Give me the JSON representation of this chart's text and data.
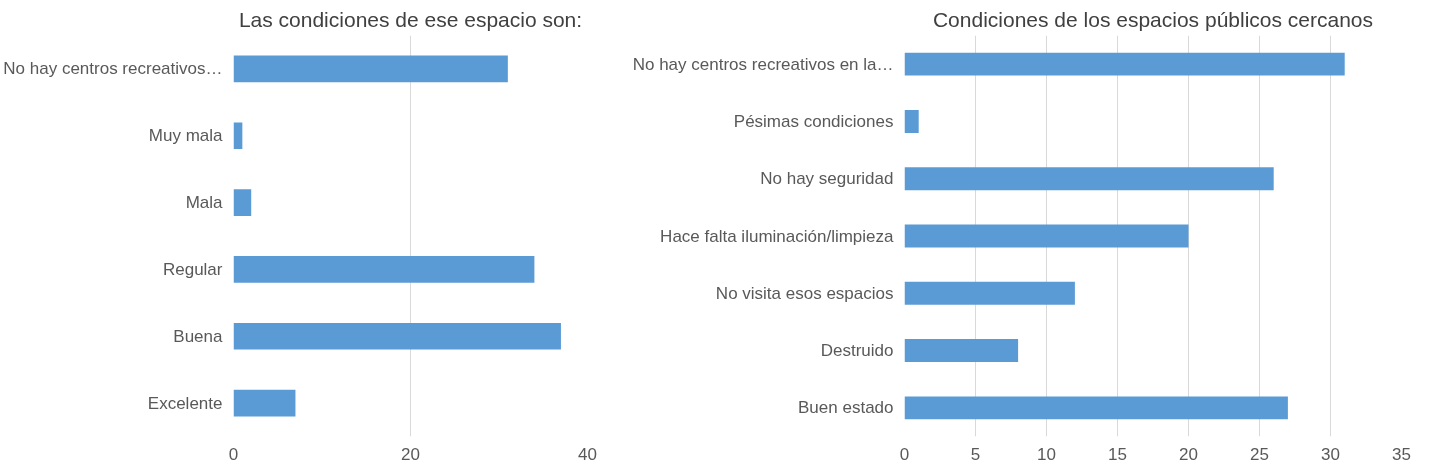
{
  "chart_data": [
    {
      "type": "bar",
      "orientation": "horizontal",
      "title": "Las condiciones de ese espacio son:",
      "categories": [
        "No hay centros recreativos…",
        "Muy mala",
        "Mala",
        "Regular",
        "Buena",
        "Excelente"
      ],
      "series": [
        {
          "color": "#5b9bd5",
          "values": [
            31,
            1,
            2,
            34,
            37,
            7
          ]
        }
      ],
      "xlim": [
        0,
        40
      ],
      "xticks": [
        0,
        20,
        40
      ],
      "grid": "x"
    },
    {
      "type": "bar",
      "orientation": "horizontal",
      "title": "Condiciones de los espacios públicos cercanos",
      "categories": [
        "No hay centros recreativos en la…",
        "Pésimas condiciones",
        "No hay seguridad",
        "Hace falta iluminación/limpieza",
        "No visita esos espacios",
        "Destruido",
        "Buen estado"
      ],
      "series": [
        {
          "color": "#5b9bd5",
          "values": [
            31,
            1,
            26,
            20,
            12,
            8,
            27
          ]
        }
      ],
      "xlim": [
        0,
        35
      ],
      "xticks": [
        0,
        5,
        10,
        15,
        20,
        25,
        30,
        35
      ],
      "grid": "x"
    }
  ]
}
